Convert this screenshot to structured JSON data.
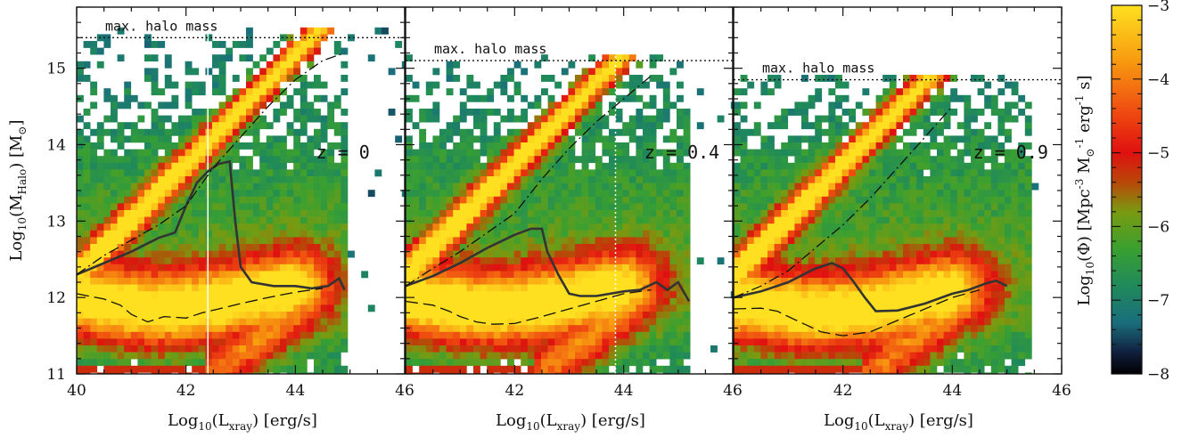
{
  "chart_data": {
    "type": "heatmap",
    "colorbar": {
      "label_prefix": "Log",
      "label_sub": "10",
      "label_main": "(Φ)  [Mpc",
      "label_exp1": "-3",
      "label_mid": " M",
      "label_sun": "⊙",
      "label_exp2": "-1",
      "label_mid2": " erg",
      "label_exp3": "-1",
      "label_end": " s]",
      "range": [
        -8,
        -3
      ],
      "ticks": [
        "−3",
        "−4",
        "−5",
        "−6",
        "−7",
        "−8"
      ],
      "tick_values": [
        -3,
        -4,
        -5,
        -6,
        -7,
        -8
      ]
    },
    "y_axis": {
      "label_prefix": "Log",
      "label_sub": "10",
      "label_open": "(M",
      "label_sub2": "Halo",
      "label_close": ")  [M",
      "label_sun": "⊙",
      "label_end": "]",
      "range": [
        11,
        15.8
      ],
      "ticks": [
        "11",
        "12",
        "13",
        "14",
        "15"
      ],
      "tick_values": [
        11,
        12,
        13,
        14,
        15
      ]
    },
    "x_axis": {
      "label_prefix": "Log",
      "label_sub": "10",
      "label_open": "(L",
      "label_sub2": "xray",
      "label_close": ")  [erg/s]",
      "range": [
        40,
        46
      ],
      "ticks": [
        "40",
        "42",
        "44",
        "46"
      ],
      "tick_values": [
        40,
        42,
        44,
        46
      ]
    },
    "panels": [
      {
        "redshift_label": "z  =  0",
        "max_halo_label": "max. halo mass",
        "max_halo_mass": 15.4,
        "tick_labels_x": [
          "40",
          "42",
          "44",
          "46"
        ],
        "series": [
          {
            "style": "solid",
            "x": [
              40.0,
              40.5,
              41.0,
              41.5,
              41.8,
              42.0,
              42.2,
              42.4,
              42.6,
              42.8,
              42.9,
              43.0,
              43.2,
              43.6,
              44.0,
              44.3,
              44.6,
              44.8,
              44.9
            ],
            "y": [
              12.3,
              12.45,
              12.6,
              12.78,
              12.85,
              13.2,
              13.5,
              13.65,
              13.75,
              13.78,
              13.0,
              12.4,
              12.2,
              12.15,
              12.15,
              12.12,
              12.15,
              12.25,
              12.1
            ]
          },
          {
            "style": "dashed",
            "x": [
              40.0,
              40.5,
              40.8,
              41.0,
              41.3,
              41.6,
              42.0,
              42.3,
              42.6,
              43.0,
              43.5,
              44.0,
              44.5
            ],
            "y": [
              12.05,
              11.98,
              11.9,
              11.78,
              11.68,
              11.75,
              11.73,
              11.8,
              11.85,
              11.92,
              12.0,
              12.07,
              12.12
            ]
          },
          {
            "style": "dashdot",
            "x": [
              40.0,
              40.5,
              41.0,
              41.5,
              42.0,
              42.5,
              43.0,
              43.5,
              44.0,
              44.5,
              44.9
            ],
            "y": [
              12.3,
              12.55,
              12.75,
              12.95,
              13.2,
              13.7,
              14.1,
              14.5,
              14.85,
              15.1,
              15.2
            ]
          }
        ],
        "density": {
          "ridge_low": 12.0,
          "ridge_high_slope": 0.72,
          "lmax": 45.0,
          "vline": 42.4
        }
      },
      {
        "redshift_label": "z  =  0.4",
        "max_halo_label": "max. halo mass",
        "max_halo_mass": 15.1,
        "tick_labels_x": [
          "",
          "42",
          "44",
          "46"
        ],
        "series": [
          {
            "style": "solid",
            "x": [
              40.0,
              40.5,
              41.0,
              41.5,
              42.0,
              42.3,
              42.5,
              42.6,
              42.8,
              43.0,
              43.2,
              43.5,
              44.0,
              44.3,
              44.6,
              44.8,
              45.0,
              45.2
            ],
            "y": [
              12.15,
              12.28,
              12.45,
              12.65,
              12.82,
              12.9,
              12.9,
              12.6,
              12.3,
              12.05,
              12.02,
              12.02,
              12.08,
              12.1,
              12.2,
              12.1,
              12.2,
              11.95
            ]
          },
          {
            "style": "dashed",
            "x": [
              40.0,
              40.5,
              40.8,
              41.0,
              41.3,
              41.6,
              42.0,
              42.5,
              43.0,
              43.5,
              44.0,
              44.5
            ],
            "y": [
              11.95,
              11.9,
              11.82,
              11.75,
              11.68,
              11.65,
              11.66,
              11.75,
              11.85,
              11.95,
              12.05,
              12.1
            ]
          },
          {
            "style": "dashdot",
            "x": [
              40.0,
              40.5,
              41.0,
              41.5,
              42.0,
              42.5,
              43.0,
              43.5,
              44.0,
              44.5
            ],
            "y": [
              12.15,
              12.38,
              12.6,
              12.85,
              13.1,
              13.55,
              13.95,
              14.3,
              14.6,
              14.9
            ]
          }
        ],
        "density": {
          "ridge_low": 12.0,
          "ridge_high_slope": 0.72,
          "lmax": 45.2,
          "vline": 43.85
        }
      },
      {
        "redshift_label": "z  =  0.9",
        "max_halo_label": "max. halo mass",
        "max_halo_mass": 14.85,
        "tick_labels_x": [
          "",
          "42",
          "44",
          "46"
        ],
        "series": [
          {
            "style": "solid",
            "x": [
              40.0,
              40.5,
              41.0,
              41.5,
              41.8,
              42.0,
              42.2,
              42.4,
              42.6,
              43.0,
              43.5,
              44.0,
              44.3,
              44.6,
              44.8,
              45.0
            ],
            "y": [
              12.0,
              12.08,
              12.2,
              12.38,
              12.45,
              12.38,
              12.2,
              12.0,
              11.82,
              11.83,
              11.92,
              12.05,
              12.1,
              12.18,
              12.22,
              12.15
            ]
          },
          {
            "style": "dashed",
            "x": [
              40.0,
              40.5,
              40.8,
              41.0,
              41.3,
              41.6,
              42.0,
              42.5,
              43.0,
              43.5,
              44.0,
              44.5
            ],
            "y": [
              11.85,
              11.86,
              11.82,
              11.75,
              11.65,
              11.55,
              11.5,
              11.55,
              11.7,
              11.85,
              12.0,
              12.1
            ]
          },
          {
            "style": "dashdot",
            "x": [
              40.0,
              40.5,
              41.0,
              41.5,
              42.0,
              42.5,
              43.0,
              43.5,
              44.0
            ],
            "y": [
              12.0,
              12.15,
              12.35,
              12.65,
              12.95,
              13.3,
              13.7,
              14.1,
              14.5
            ]
          }
        ],
        "density": {
          "ridge_low": 11.95,
          "ridge_high_slope": 0.72,
          "lmax": 45.5,
          "vline": null
        }
      }
    ]
  }
}
